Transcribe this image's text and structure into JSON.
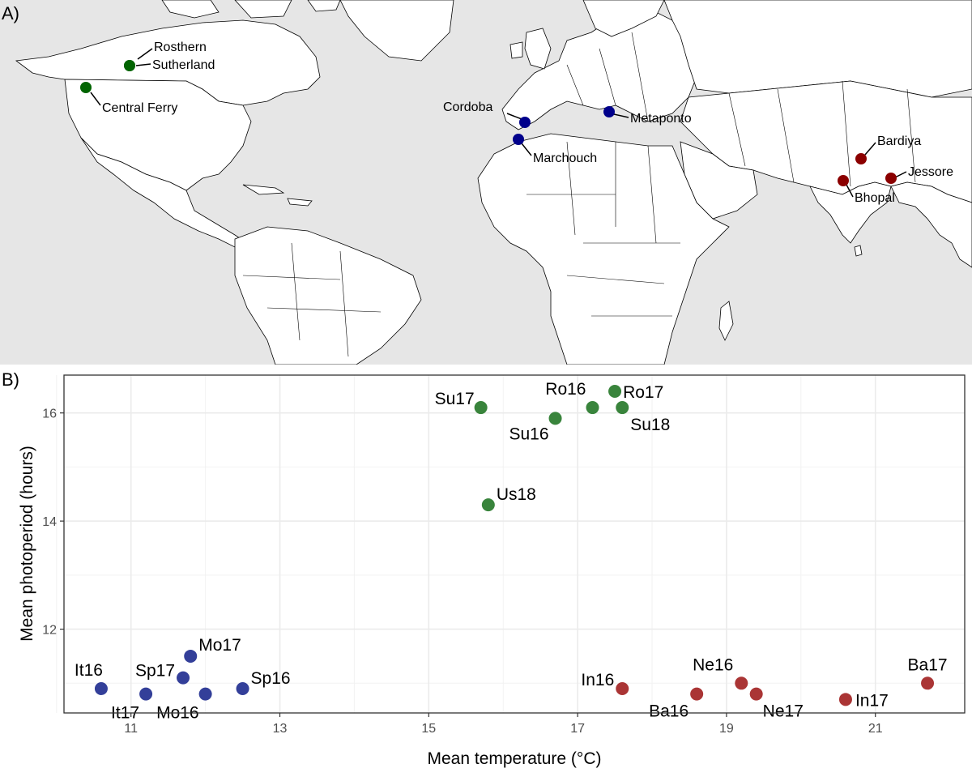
{
  "panels": {
    "a_label": "A)",
    "b_label": "B)"
  },
  "colors": {
    "north": "#2e7d32",
    "mediterranean": "#283593",
    "south_asia": "#a52a2a",
    "map_north": "#006400",
    "map_med": "#00008b",
    "map_sa": "#8b0000",
    "ocean": "#e6e6e6",
    "grid": "#ebebeb"
  },
  "map": {
    "sites": [
      {
        "name": "Rosthern",
        "group": "north"
      },
      {
        "name": "Sutherland",
        "group": "north"
      },
      {
        "name": "Central Ferry",
        "group": "north"
      },
      {
        "name": "Cordoba",
        "group": "mediterranean"
      },
      {
        "name": "Metaponto",
        "group": "mediterranean"
      },
      {
        "name": "Marchouch",
        "group": "mediterranean"
      },
      {
        "name": "Bardiya",
        "group": "south_asia"
      },
      {
        "name": "Jessore",
        "group": "south_asia"
      },
      {
        "name": "Bhopal",
        "group": "south_asia"
      }
    ]
  },
  "chart_data": {
    "type": "scatter",
    "xlabel": "Mean temperature (°C)",
    "ylabel": "Mean photoperiod (hours)",
    "xlim": [
      10.1,
      22.2
    ],
    "ylim": [
      10.45,
      16.7
    ],
    "xticks": [
      11,
      13,
      15,
      17,
      19,
      21
    ],
    "yticks": [
      12,
      14,
      16
    ],
    "grid": true,
    "points": [
      {
        "label": "Su17",
        "x": 15.7,
        "y": 16.1,
        "group": "north"
      },
      {
        "label": "Su16",
        "x": 16.7,
        "y": 15.9,
        "group": "north"
      },
      {
        "label": "Ro16",
        "x": 17.2,
        "y": 16.1,
        "group": "north"
      },
      {
        "label": "Ro17",
        "x": 17.5,
        "y": 16.4,
        "group": "north"
      },
      {
        "label": "Su18",
        "x": 17.6,
        "y": 16.1,
        "group": "north"
      },
      {
        "label": "Us18",
        "x": 15.8,
        "y": 14.3,
        "group": "north"
      },
      {
        "label": "It16",
        "x": 10.6,
        "y": 10.9,
        "group": "mediterranean"
      },
      {
        "label": "It17",
        "x": 11.2,
        "y": 10.8,
        "group": "mediterranean"
      },
      {
        "label": "Sp17",
        "x": 11.7,
        "y": 11.1,
        "group": "mediterranean"
      },
      {
        "label": "Mo17",
        "x": 11.8,
        "y": 11.5,
        "group": "mediterranean"
      },
      {
        "label": "Mo16",
        "x": 12.0,
        "y": 10.8,
        "group": "mediterranean"
      },
      {
        "label": "Sp16",
        "x": 12.5,
        "y": 10.9,
        "group": "mediterranean"
      },
      {
        "label": "In16",
        "x": 17.6,
        "y": 10.9,
        "group": "south_asia"
      },
      {
        "label": "Ba16",
        "x": 18.6,
        "y": 10.8,
        "group": "south_asia"
      },
      {
        "label": "Ne16",
        "x": 19.2,
        "y": 11.0,
        "group": "south_asia"
      },
      {
        "label": "Ne17",
        "x": 19.4,
        "y": 10.8,
        "group": "south_asia"
      },
      {
        "label": "In17",
        "x": 20.6,
        "y": 10.7,
        "group": "south_asia"
      },
      {
        "label": "Ba17",
        "x": 21.7,
        "y": 11.0,
        "group": "south_asia"
      }
    ]
  }
}
